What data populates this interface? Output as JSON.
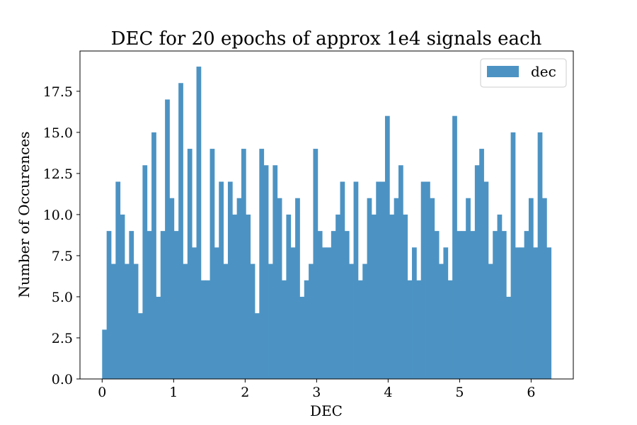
{
  "chart_data": {
    "type": "bar",
    "title": "DEC for 20 epochs of approx 1e4 signals each",
    "xlabel": "DEC",
    "ylabel": "Number of Occurences",
    "xlim": [
      -0.31,
      6.59
    ],
    "ylim": [
      0,
      19.95
    ],
    "xticks": [
      0,
      1,
      2,
      3,
      4,
      5,
      6
    ],
    "xtick_labels": [
      "0",
      "1",
      "2",
      "3",
      "4",
      "5",
      "6"
    ],
    "yticks": [
      0,
      2.5,
      5,
      7.5,
      10,
      12.5,
      15,
      17.5
    ],
    "ytick_labels": [
      "0.0",
      "2.5",
      "5.0",
      "7.5",
      "10.0",
      "12.5",
      "15.0",
      "17.5"
    ],
    "grid": false,
    "legend": {
      "position": "top-right",
      "entries": [
        "dec"
      ]
    },
    "color": "#4c93c3",
    "bin_start": 0,
    "bin_width": 0.0628,
    "series": [
      {
        "name": "dec",
        "values": [
          3,
          9,
          7,
          12,
          10,
          7,
          9,
          7,
          4,
          13,
          9,
          15,
          5,
          9,
          17,
          11,
          9,
          18,
          7,
          14,
          8,
          19,
          6,
          6,
          14,
          8,
          12,
          7,
          12,
          10,
          11,
          14,
          10,
          7,
          4,
          14,
          13,
          7,
          13,
          11,
          6,
          10,
          8,
          11,
          5,
          6,
          7,
          14,
          9,
          8,
          8,
          9,
          10,
          12,
          9,
          7,
          12,
          6,
          7,
          11,
          10,
          12,
          12,
          16,
          10,
          11,
          13,
          10,
          6,
          8,
          6,
          12,
          12,
          11,
          9,
          7,
          8,
          6,
          16,
          9,
          9,
          11,
          9,
          13,
          14,
          12,
          7,
          9,
          10,
          9,
          5,
          15,
          8,
          8,
          9,
          11,
          8,
          15,
          11,
          8
        ]
      }
    ]
  }
}
